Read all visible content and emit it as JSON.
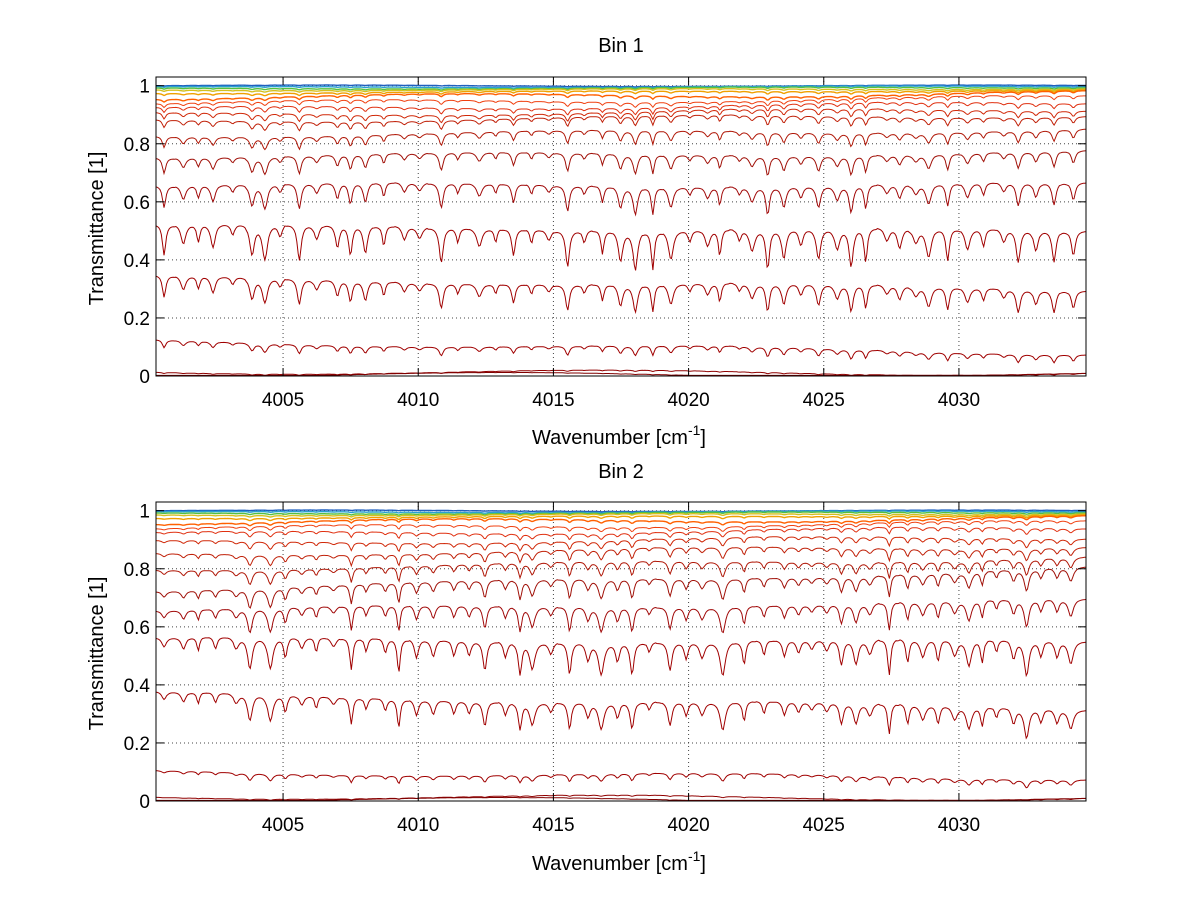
{
  "chart_data": [
    {
      "type": "line",
      "title": "Bin 1",
      "xlabel": "Wavenumber [cm",
      "xlabel_sup": "-1",
      "xlabel_close": "]",
      "ylabel": "Transmittance [1]",
      "xlim": [
        4000.3,
        4034.7
      ],
      "ylim": [
        0,
        1.03
      ],
      "x_ticks": [
        4005,
        4010,
        4015,
        4020,
        4025,
        4030
      ],
      "x_tick_labels": [
        "4005",
        "4010",
        "4015",
        "4020",
        "4025",
        "4030"
      ],
      "y_ticks": [
        0,
        0.2,
        0.4,
        0.6,
        0.8,
        1
      ],
      "y_tick_labels": [
        "0",
        "0.2",
        "0.4",
        "0.6",
        "0.8",
        "1"
      ],
      "grid": true,
      "series_baselines_left": [
        1.0,
        0.995,
        0.99,
        0.985,
        0.975,
        0.96,
        0.94,
        0.92,
        0.9,
        0.88,
        0.83,
        0.76,
        0.66,
        0.52,
        0.34,
        0.12,
        0.015,
        0.005
      ],
      "series_baselines_right": [
        1.0,
        0.998,
        0.995,
        0.99,
        0.985,
        0.975,
        0.96,
        0.94,
        0.92,
        0.9,
        0.85,
        0.77,
        0.66,
        0.5,
        0.3,
        0.08,
        0.01,
        0.003
      ],
      "series_colors": [
        "#1f5fbf",
        "#2aa0d0",
        "#55c040",
        "#d4c020",
        "#f0a000",
        "#ff6000",
        "#f04010",
        "#e03010",
        "#d02808",
        "#c02008",
        "#b01808",
        "#a01008",
        "#a00808",
        "#a00000",
        "#a00000",
        "#a00000",
        "#900000",
        "#800000"
      ]
    },
    {
      "type": "line",
      "title": "Bin 2",
      "xlabel": "Wavenumber [cm",
      "xlabel_sup": "-1",
      "xlabel_close": "]",
      "ylabel": "Transmittance [1]",
      "xlim": [
        4000.3,
        4034.7
      ],
      "ylim": [
        0,
        1.03
      ],
      "x_ticks": [
        4005,
        4010,
        4015,
        4020,
        4025,
        4030
      ],
      "x_tick_labels": [
        "4005",
        "4010",
        "4015",
        "4020",
        "4025",
        "4030"
      ],
      "y_ticks": [
        0,
        0.2,
        0.4,
        0.6,
        0.8,
        1
      ],
      "y_tick_labels": [
        "0",
        "0.2",
        "0.4",
        "0.6",
        "0.8",
        "1"
      ],
      "grid": true,
      "series_baselines_left": [
        1.0,
        0.995,
        0.99,
        0.985,
        0.975,
        0.96,
        0.94,
        0.92,
        0.89,
        0.85,
        0.8,
        0.73,
        0.66,
        0.56,
        0.37,
        0.1,
        0.015,
        0.005
      ],
      "series_baselines_right": [
        1.0,
        0.998,
        0.995,
        0.99,
        0.985,
        0.975,
        0.96,
        0.94,
        0.91,
        0.88,
        0.84,
        0.8,
        0.69,
        0.55,
        0.32,
        0.08,
        0.01,
        0.003
      ],
      "series_colors": [
        "#1f5fbf",
        "#2aa0d0",
        "#55c040",
        "#d4c020",
        "#f0a000",
        "#ff6000",
        "#f04010",
        "#e03010",
        "#d02808",
        "#c02008",
        "#b01808",
        "#a01008",
        "#a00808",
        "#a00000",
        "#a00000",
        "#a00000",
        "#900000",
        "#800000"
      ]
    }
  ]
}
